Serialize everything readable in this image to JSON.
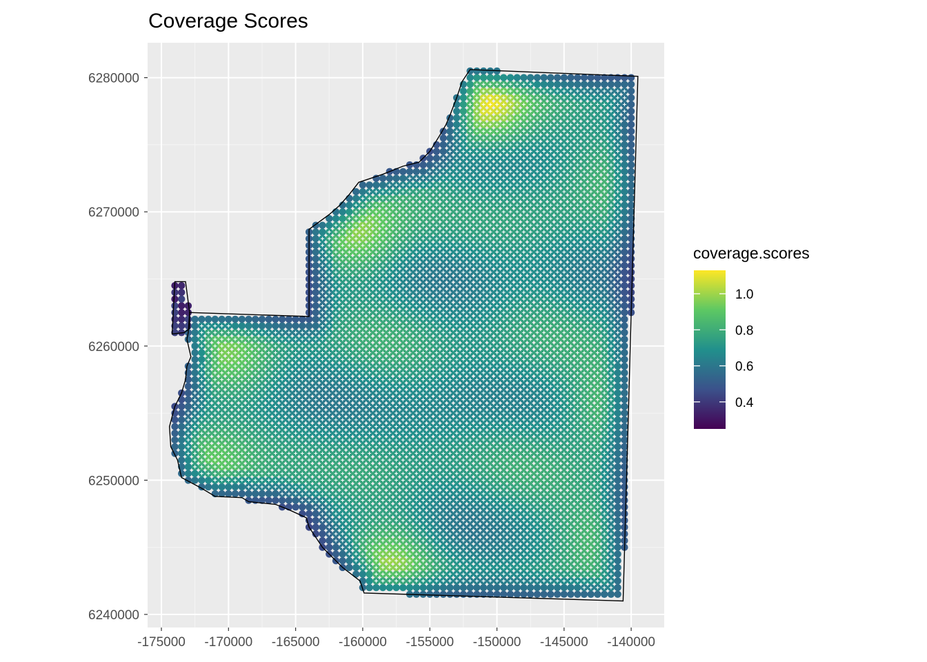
{
  "chart_data": {
    "type": "heatmap",
    "title": "Coverage Scores",
    "xlabel": "",
    "ylabel": "",
    "xlim": [
      -176000,
      -138000
    ],
    "ylim": [
      6239500,
      6282500
    ],
    "x_ticks": [
      -175000,
      -170000,
      -165000,
      -160000,
      -155000,
      -150000,
      -145000,
      -140000
    ],
    "x_tick_labels": [
      "-175000",
      "-170000",
      "-165000",
      "-160000",
      "-155000",
      "-150000",
      "-145000",
      "-140000"
    ],
    "y_ticks": [
      6240000,
      6250000,
      6260000,
      6270000,
      6280000
    ],
    "y_tick_labels": [
      "6240000",
      "6250000",
      "6260000",
      "6270000",
      "6280000"
    ],
    "grid": true,
    "legend": {
      "title": "coverage.scores",
      "placement": "right",
      "min": 0.25,
      "max": 1.13,
      "breaks": [
        0.4,
        0.6,
        0.8,
        1.0
      ],
      "break_labels": [
        "0.4",
        "0.6",
        "0.8",
        "1.0"
      ],
      "colors": [
        "#440154",
        "#3b528b",
        "#21908c",
        "#5dc863",
        "#fde725"
      ]
    },
    "grid_spacing": 500,
    "boundary": [
      [
        -152000,
        6280600
      ],
      [
        -139500,
        6280100
      ],
      [
        -140600,
        6241000
      ],
      [
        -159900,
        6241600
      ],
      [
        -160200,
        6242500
      ],
      [
        -161500,
        6243500
      ],
      [
        -163000,
        6245000
      ],
      [
        -164000,
        6246500
      ],
      [
        -164200,
        6247200
      ],
      [
        -165500,
        6247800
      ],
      [
        -166500,
        6248200
      ],
      [
        -168500,
        6248400
      ],
      [
        -169000,
        6248700
      ],
      [
        -171000,
        6248800
      ],
      [
        -172000,
        6249400
      ],
      [
        -173500,
        6250200
      ],
      [
        -173800,
        6251500
      ],
      [
        -174300,
        6252500
      ],
      [
        -174400,
        6254000
      ],
      [
        -174000,
        6255500
      ],
      [
        -173500,
        6256500
      ],
      [
        -173200,
        6257500
      ],
      [
        -173100,
        6258500
      ],
      [
        -172800,
        6259200
      ],
      [
        -173100,
        6260500
      ],
      [
        -173000,
        6261000
      ],
      [
        -172900,
        6262500
      ],
      [
        -164000,
        6262200
      ],
      [
        -164000,
        6268700
      ],
      [
        -162500,
        6269800
      ],
      [
        -161700,
        6270500
      ],
      [
        -161000,
        6271300
      ],
      [
        -160300,
        6272200
      ],
      [
        -158500,
        6272800
      ],
      [
        -157000,
        6273400
      ],
      [
        -155800,
        6273700
      ],
      [
        -155000,
        6274500
      ],
      [
        -154200,
        6275800
      ],
      [
        -153800,
        6276500
      ],
      [
        -153500,
        6277200
      ],
      [
        -153000,
        6278500
      ],
      [
        -152600,
        6279700
      ]
    ],
    "notch": [
      [
        -174000,
        6264800
      ],
      [
        -173200,
        6264800
      ],
      [
        -172900,
        6262500
      ],
      [
        -172900,
        6261300
      ],
      [
        -173300,
        6261000
      ],
      [
        -174200,
        6260900
      ]
    ],
    "hotspots": [
      {
        "x": -151000,
        "y": 6278000,
        "value": 1.13
      },
      {
        "x": -160500,
        "y": 6268300,
        "value": 1.0
      },
      {
        "x": -158000,
        "y": 6243600,
        "value": 1.0
      },
      {
        "x": -142000,
        "y": 6255500,
        "value": 0.95
      },
      {
        "x": -142500,
        "y": 6246000,
        "value": 0.92
      },
      {
        "x": -171500,
        "y": 6251500,
        "value": 0.92
      },
      {
        "x": -170000,
        "y": 6259300,
        "value": 0.9
      },
      {
        "x": -141500,
        "y": 6273500,
        "value": 0.88
      }
    ]
  }
}
